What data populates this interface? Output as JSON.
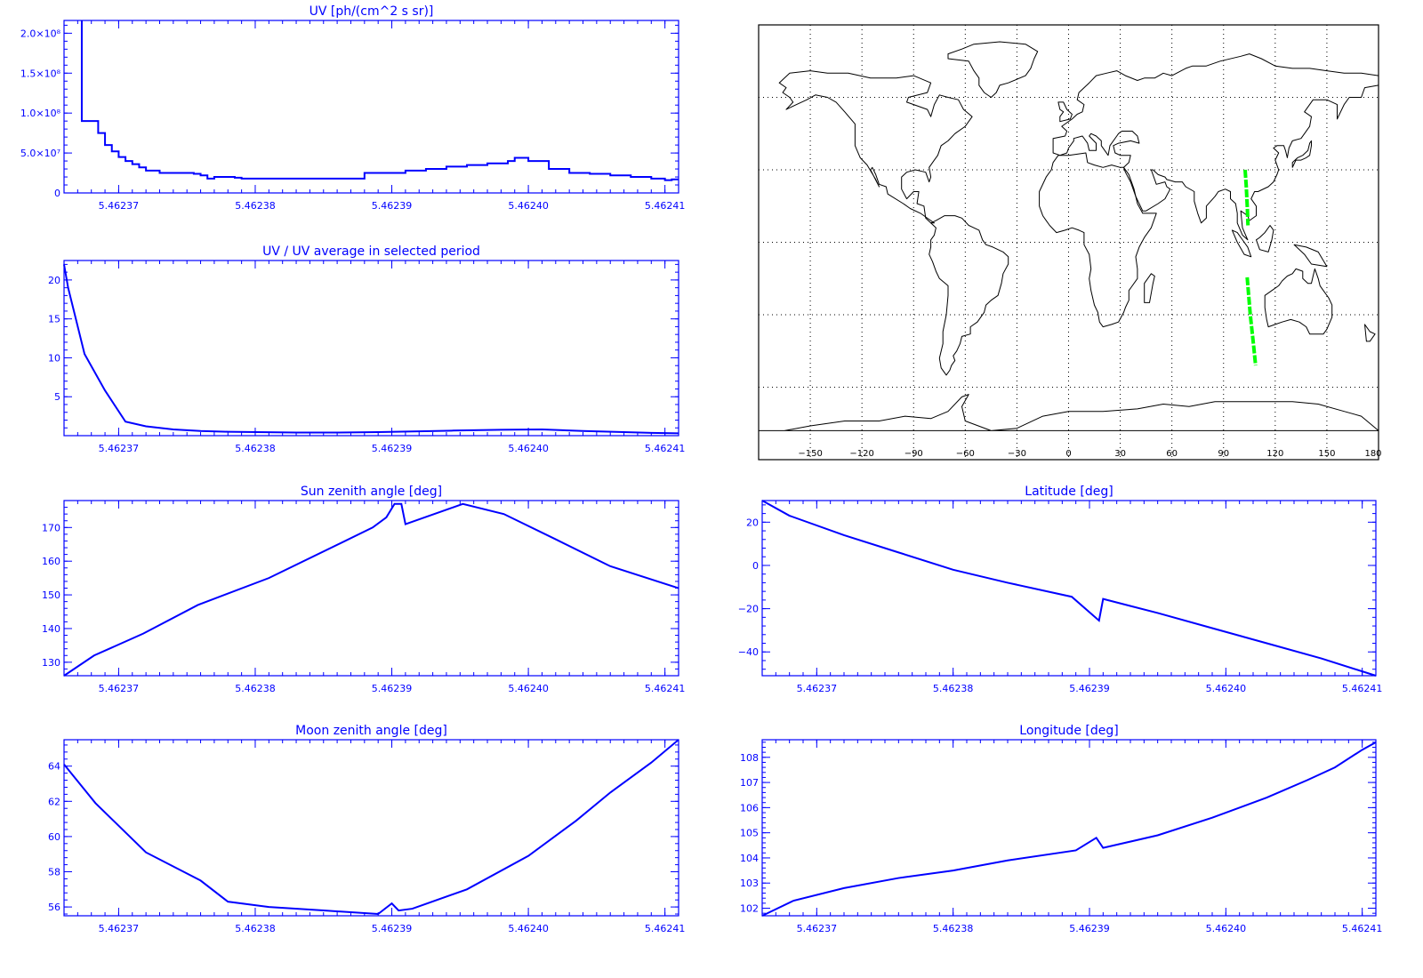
{
  "colors": {
    "axis": "#0000ff",
    "line": "#0000ff",
    "map_line": "#000000",
    "track": "#00ff00",
    "background": "#ffffff"
  },
  "x_ticks": [
    "5.46237",
    "5.46238",
    "5.46239",
    "5.46240",
    "5.46241"
  ],
  "chart_data": [
    {
      "id": "uv",
      "type": "line",
      "step": true,
      "title": "UV [ph/(cm^2 s sr)]",
      "xlim": [
        5.462366,
        5.462411
      ],
      "ylim": [
        0,
        216000000
      ],
      "yticks": [
        0,
        50000000,
        100000000,
        150000000,
        200000000
      ],
      "yticklabels": [
        "0",
        "5.0×10⁷",
        "1.0×10⁸",
        "1.5×10⁸",
        "2.0×10⁸"
      ],
      "x": [
        5.4623673,
        5.4623673,
        5.4623685,
        5.462369,
        5.4623695,
        5.46237,
        5.4623705,
        5.462371,
        5.4623715,
        5.462372,
        5.462373,
        5.4623745,
        5.4623755,
        5.462376,
        5.4623765,
        5.462377,
        5.4623785,
        5.462379,
        5.4623805,
        5.462382,
        5.4623835,
        5.462385,
        5.4623865,
        5.462388,
        5.4623895,
        5.462391,
        5.4623925,
        5.462394,
        5.4623955,
        5.462397,
        5.4623985,
        5.462399,
        5.4624,
        5.4624015,
        5.462403,
        5.4624045,
        5.462406,
        5.4624075,
        5.462409,
        5.46241,
        5.4624105
      ],
      "y": [
        216000000,
        90000000,
        75000000,
        60000000,
        52000000,
        45000000,
        40000000,
        36000000,
        32000000,
        28000000,
        25000000,
        25000000,
        24000000,
        22000000,
        18000000,
        20000000,
        19000000,
        18000000,
        18000000,
        18000000,
        18000000,
        18000000,
        18000000,
        25000000,
        25000000,
        28000000,
        30000000,
        33000000,
        35000000,
        37000000,
        40000000,
        44000000,
        40000000,
        30000000,
        25000000,
        24000000,
        22000000,
        20000000,
        18000000,
        16000000,
        17000000
      ]
    },
    {
      "id": "uv_ratio",
      "type": "line",
      "title": "UV / UV average in selected period",
      "xlim": [
        5.462366,
        5.462411
      ],
      "ylim": [
        0,
        22.5
      ],
      "yticks": [
        5,
        10,
        15,
        20
      ],
      "yticklabels": [
        "5",
        "10",
        "15",
        "20"
      ],
      "x": [
        5.462366,
        5.4623663,
        5.4623675,
        5.462369,
        5.4623705,
        5.462372,
        5.462374,
        5.462376,
        5.462378,
        5.462383,
        5.462386,
        5.462389,
        5.462392,
        5.4623945,
        5.462398,
        5.462401,
        5.462404,
        5.462407,
        5.462409,
        5.462411
      ],
      "y": [
        22,
        19,
        10.5,
        5.8,
        1.8,
        1.2,
        0.8,
        0.6,
        0.5,
        0.4,
        0.4,
        0.45,
        0.55,
        0.65,
        0.75,
        0.8,
        0.6,
        0.45,
        0.35,
        0.3
      ]
    },
    {
      "id": "sun",
      "type": "line",
      "title": "Sun zenith angle [deg]",
      "xlim": [
        5.462366,
        5.462411
      ],
      "ylim": [
        126,
        178
      ],
      "yticks": [
        130,
        140,
        150,
        160,
        170
      ],
      "yticklabels": [
        "130",
        "140",
        "150",
        "160",
        "170"
      ],
      "x": [
        5.462366,
        5.4623682,
        5.4623718,
        5.4623758,
        5.462381,
        5.4623886,
        5.4623896,
        5.4623902,
        5.4623907,
        5.462391,
        5.4623952,
        5.4623982,
        5.462402,
        5.462406,
        5.462411
      ],
      "y": [
        126,
        132,
        138.5,
        147,
        155,
        170,
        173,
        177,
        177,
        171,
        177,
        174,
        166.5,
        158.5,
        152
      ]
    },
    {
      "id": "moon",
      "type": "line",
      "title": "Moon zenith angle [deg]",
      "xlim": [
        5.462366,
        5.462411
      ],
      "ylim": [
        55.5,
        65.5
      ],
      "yticks": [
        56,
        58,
        60,
        62,
        64
      ],
      "yticklabels": [
        "56",
        "58",
        "60",
        "62",
        "64"
      ],
      "x": [
        5.462366,
        5.4623683,
        5.462372,
        5.462376,
        5.462378,
        5.462381,
        5.462385,
        5.462389,
        5.46239,
        5.4623905,
        5.4623915,
        5.4623955,
        5.4624,
        5.4624035,
        5.462406,
        5.462409,
        5.462411
      ],
      "y": [
        64.1,
        61.9,
        59.1,
        57.5,
        56.3,
        56.0,
        55.8,
        55.6,
        56.2,
        55.8,
        55.9,
        57.0,
        58.9,
        60.9,
        62.5,
        64.2,
        65.5
      ]
    },
    {
      "id": "lat",
      "type": "line",
      "title": "Latitude [deg]",
      "xlim": [
        5.462366,
        5.462411
      ],
      "ylim": [
        -51,
        30
      ],
      "yticks": [
        -40,
        -20,
        0,
        20
      ],
      "yticklabels": [
        "−40",
        "−20",
        "0",
        "20"
      ],
      "x": [
        5.462366,
        5.462368,
        5.462372,
        5.462376,
        5.46238,
        5.462384,
        5.4623887,
        5.4623907,
        5.462391,
        5.462395,
        5.462399,
        5.462403,
        5.462407,
        5.462411
      ],
      "y": [
        30,
        23,
        14,
        6,
        -2,
        -8,
        -14.5,
        -25.5,
        -15.5,
        -22,
        -29,
        -36,
        -43,
        -51
      ]
    },
    {
      "id": "lon",
      "type": "line",
      "title": "Longitude [deg]",
      "xlim": [
        5.462366,
        5.462411
      ],
      "ylim": [
        101.7,
        108.7
      ],
      "yticks": [
        102,
        103,
        104,
        105,
        106,
        107,
        108
      ],
      "yticklabels": [
        "102",
        "103",
        "104",
        "105",
        "106",
        "107",
        "108"
      ],
      "x": [
        5.462366,
        5.4623683,
        5.462372,
        5.462376,
        5.46238,
        5.462384,
        5.462389,
        5.4623905,
        5.462391,
        5.462395,
        5.462399,
        5.462403,
        5.462406,
        5.462408,
        5.46241,
        5.462411
      ],
      "y": [
        101.7,
        102.3,
        102.8,
        103.2,
        103.5,
        103.9,
        104.3,
        104.8,
        104.4,
        104.9,
        105.6,
        106.4,
        107.1,
        107.6,
        108.3,
        108.6
      ]
    }
  ],
  "map": {
    "xticklabels": [
      "−150",
      "−120",
      "−90",
      "−60",
      "−30",
      "0",
      "30",
      "60",
      "90",
      "120",
      "150",
      "180"
    ],
    "lon_ticks": [
      -150,
      -120,
      -90,
      -60,
      -30,
      0,
      30,
      60,
      90,
      120,
      150,
      180
    ],
    "lat_grid": [
      60,
      30,
      0,
      -30,
      -60
    ],
    "xlim": [
      -180,
      180
    ],
    "ylim": [
      -90,
      90
    ],
    "track": [
      [
        [
          102.5,
          30
        ],
        [
          103.2,
          23
        ],
        [
          103.8,
          14
        ],
        [
          104.2,
          7
        ]
      ],
      [
        [
          103.7,
          -14.5
        ],
        [
          105.5,
          -30
        ],
        [
          107.5,
          -43
        ],
        [
          108.6,
          -51
        ]
      ]
    ]
  }
}
